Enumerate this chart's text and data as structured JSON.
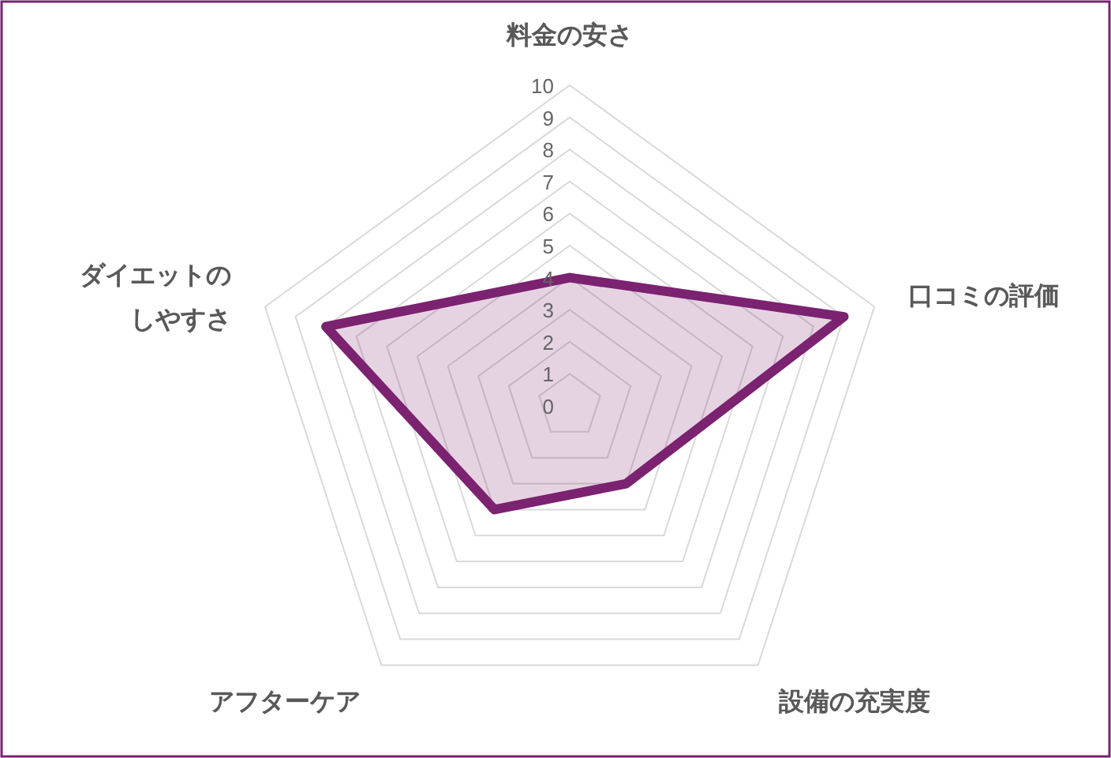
{
  "chart_data": {
    "type": "radar",
    "categories": [
      "料金の安さ",
      "口コミの評価",
      "設備の充実度",
      "アフターケア",
      "ダイエットのしやすさ"
    ],
    "series": [
      {
        "color": "#7b2270",
        "values": [
          4,
          9,
          3,
          4,
          8
        ]
      }
    ],
    "ylim": [
      0,
      10
    ],
    "yticks": [
      0,
      1,
      2,
      3,
      4,
      5,
      6,
      7,
      8,
      9,
      10
    ],
    "grid": true
  }
}
